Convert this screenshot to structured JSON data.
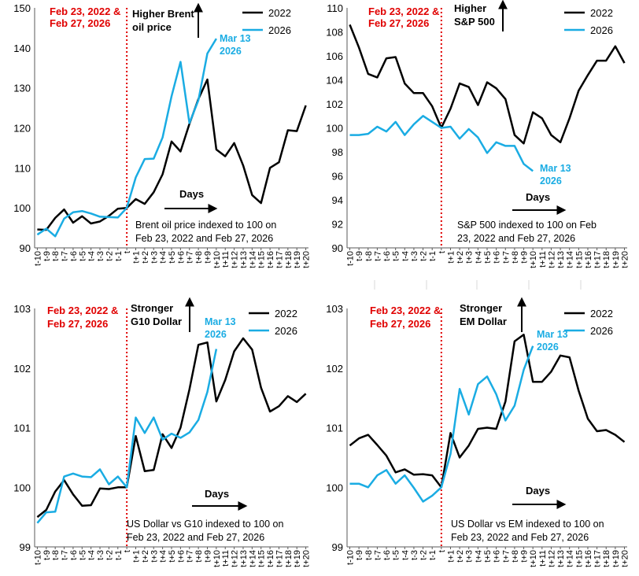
{
  "chart_data": [
    {
      "type": "line",
      "title": "Brent oil price indexed to 100 on Feb 23, 2022 and Feb 27, 2026",
      "note_lines": [
        "Brent oil price indexed to 100 on",
        "Feb 23, 2022 and Feb 27, 2026"
      ],
      "event_label": [
        "Feb 23, 2022 &",
        "Feb 27, 2026"
      ],
      "direction_label": [
        "Higher Brent",
        "oil price"
      ],
      "days_label": "Days",
      "end_label": [
        "Mar 13",
        "2026"
      ],
      "ylim": [
        90,
        150
      ],
      "yticks": [
        90,
        100,
        110,
        120,
        130,
        140,
        150
      ],
      "categories": [
        "t-10",
        "t-9",
        "t-8",
        "t-7",
        "t-6",
        "t-5",
        "t-4",
        "t-3",
        "t-2",
        "t-1",
        "t",
        "t+1",
        "t+2",
        "t+3",
        "t+4",
        "t+5",
        "t+6",
        "t+7",
        "t+8",
        "t+9",
        "t+10",
        "t+11",
        "t+12",
        "t+13",
        "t+14",
        "t+15",
        "t+16",
        "t+17",
        "t+18",
        "t+19",
        "t+20"
      ],
      "series": [
        {
          "name": "2022",
          "color": "#000000",
          "values": [
            94.6,
            94.5,
            97.5,
            99.6,
            96.3,
            97.9,
            96.1,
            96.6,
            98.0,
            99.8,
            100,
            102.2,
            101.0,
            103.9,
            108.4,
            116.6,
            114.1,
            121.0,
            127.2,
            132.1,
            114.6,
            112.9,
            116.2,
            110.6,
            103.2,
            101.2,
            110.0,
            111.4,
            119.4,
            119.2,
            125.6
          ]
        },
        {
          "name": "2026",
          "color": "#1AACE3",
          "values": [
            93.3,
            94.8,
            92.9,
            97.3,
            98.9,
            99.2,
            98.6,
            97.8,
            97.7,
            97.6,
            100,
            107.6,
            112.2,
            112.3,
            117.6,
            127.9,
            136.5,
            121.2,
            126.9,
            138.6,
            142.3,
            null,
            null,
            null,
            null,
            null,
            null,
            null,
            null,
            null,
            null
          ]
        }
      ]
    },
    {
      "type": "line",
      "title": "S&P 500 indexed to 100 on Feb 23, 2022 and Feb 27, 2026",
      "note_lines": [
        "S&P 500 indexed to 100 on Feb",
        "23, 2022 and Feb 27, 2026"
      ],
      "event_label": [
        "Feb 23, 2022 &",
        "Feb 27, 2026"
      ],
      "direction_label": [
        "Higher",
        "S&P 500"
      ],
      "days_label": "Days",
      "end_label": [
        "Mar 13",
        "2026"
      ],
      "ylim": [
        90,
        110
      ],
      "yticks": [
        90,
        92,
        94,
        96,
        98,
        100,
        102,
        104,
        106,
        108,
        110
      ],
      "categories": [
        "t-10",
        "t-9",
        "t-8",
        "t-7",
        "t-6",
        "t-5",
        "t-4",
        "t-3",
        "t-2",
        "t-1",
        "t",
        "t+1",
        "t+2",
        "t+3",
        "t+4",
        "t+5",
        "t+6",
        "t+7",
        "t+8",
        "t+9",
        "t+10",
        "t+11",
        "t+12",
        "t+13",
        "t+14",
        "t+15",
        "t+16",
        "t+17",
        "t+18",
        "t+19",
        "t+20"
      ],
      "series": [
        {
          "name": "2022",
          "color": "#000000",
          "values": [
            108.6,
            106.7,
            104.5,
            104.2,
            105.8,
            105.9,
            103.7,
            102.9,
            102.9,
            101.8,
            100,
            101.6,
            103.7,
            103.4,
            101.9,
            103.8,
            103.3,
            102.4,
            99.4,
            98.7,
            101.3,
            100.8,
            99.4,
            98.8,
            100.8,
            103.1,
            104.4,
            105.6,
            105.6,
            106.8,
            105.4
          ]
        },
        {
          "name": "2026",
          "color": "#1AACE3",
          "values": [
            99.4,
            99.4,
            99.5,
            100.1,
            99.7,
            100.5,
            99.4,
            100.3,
            101.0,
            100.5,
            100,
            100.1,
            99.1,
            99.9,
            99.2,
            97.9,
            98.8,
            98.5,
            98.5,
            97.0,
            96.4,
            null,
            null,
            null,
            null,
            null,
            null,
            null,
            null,
            null,
            null
          ]
        }
      ]
    },
    {
      "type": "line",
      "title": "US Dollar vs G10 indexed to 100 on Feb 23, 2022 and Feb 27, 2026",
      "note_lines": [
        "US Dollar vs G10 indexed to 100 on",
        "Feb 23, 2022 and Feb 27, 2026"
      ],
      "event_label": [
        "Feb 23, 2022 &",
        "Feb 27, 2026"
      ],
      "direction_label": [
        "Stronger",
        "G10 Dollar"
      ],
      "days_label": "Days",
      "end_label": [
        "Mar 13",
        "2026"
      ],
      "ylim": [
        99,
        103
      ],
      "yticks": [
        99,
        100,
        101,
        102,
        103
      ],
      "categories": [
        "t-10",
        "t-9",
        "t-8",
        "t-7",
        "t-6",
        "t-5",
        "t-4",
        "t-3",
        "t-2",
        "t-1",
        "t",
        "t+1",
        "t+2",
        "t+3",
        "t+4",
        "t+5",
        "t+6",
        "t+7",
        "t+8",
        "t+9",
        "t+10",
        "t+11",
        "t+12",
        "t+13",
        "t+14",
        "t+15",
        "t+16",
        "t+17",
        "t+18",
        "t+19",
        "t+20"
      ],
      "series": [
        {
          "name": "2022",
          "color": "#000000",
          "values": [
            99.5,
            99.62,
            99.93,
            100.12,
            99.88,
            99.69,
            99.7,
            99.98,
            99.97,
            100.0,
            100,
            100.86,
            100.27,
            100.29,
            100.89,
            100.66,
            101.0,
            101.64,
            102.39,
            102.43,
            101.44,
            101.8,
            102.28,
            102.5,
            102.31,
            101.67,
            101.27,
            101.36,
            101.53,
            101.43,
            101.57
          ]
        },
        {
          "name": "2026",
          "color": "#1AACE3",
          "values": [
            99.4,
            99.58,
            99.59,
            100.18,
            100.23,
            100.18,
            100.17,
            100.3,
            100.05,
            100.18,
            100,
            101.17,
            100.91,
            101.17,
            100.8,
            100.9,
            100.83,
            100.92,
            101.13,
            101.6,
            102.32,
            null,
            null,
            null,
            null,
            null,
            null,
            null,
            null,
            null,
            null
          ]
        }
      ]
    },
    {
      "type": "line",
      "title": "US Dollar vs EM indexed to 100 on Feb 23, 2022 and Feb 27, 2026",
      "note_lines": [
        "US Dollar vs EM indexed to 100 on",
        "Feb 23, 2022 and Feb 27, 2026"
      ],
      "event_label": [
        "Feb 23, 2022 &",
        "Feb 27, 2026"
      ],
      "direction_label": [
        "Stronger",
        "EM Dollar"
      ],
      "days_label": "Days",
      "end_label": [
        "Mar 13",
        "2026"
      ],
      "ylim": [
        99,
        103
      ],
      "yticks": [
        99,
        100,
        101,
        102,
        103
      ],
      "categories": [
        "t-10",
        "t-9",
        "t-8",
        "t-7",
        "t-6",
        "t-5",
        "t-4",
        "t-3",
        "t-2",
        "t-1",
        "t",
        "t+1",
        "t+2",
        "t+3",
        "t+4",
        "t+5",
        "t+6",
        "t+7",
        "t+8",
        "t+9",
        "t+10",
        "t+11",
        "t+12",
        "t+13",
        "t+14",
        "t+15",
        "t+16",
        "t+17",
        "t+18",
        "t+19",
        "t+20"
      ],
      "series": [
        {
          "name": "2022",
          "color": "#000000",
          "values": [
            100.7,
            100.82,
            100.88,
            100.71,
            100.53,
            100.25,
            100.3,
            100.21,
            100.22,
            100.2,
            100,
            100.91,
            100.5,
            100.7,
            100.98,
            101.0,
            100.98,
            101.44,
            102.45,
            102.56,
            101.77,
            101.77,
            101.94,
            102.21,
            102.18,
            101.62,
            101.15,
            100.94,
            100.96,
            100.88,
            100.76
          ]
        },
        {
          "name": "2026",
          "color": "#1AACE3",
          "values": [
            100.06,
            100.06,
            100.0,
            100.2,
            100.29,
            100.06,
            100.2,
            99.99,
            99.76,
            99.86,
            100,
            100.56,
            101.65,
            101.22,
            101.73,
            101.86,
            101.56,
            101.12,
            101.37,
            101.97,
            102.37,
            null,
            null,
            null,
            null,
            null,
            null,
            null,
            null,
            null,
            null
          ]
        }
      ]
    }
  ]
}
